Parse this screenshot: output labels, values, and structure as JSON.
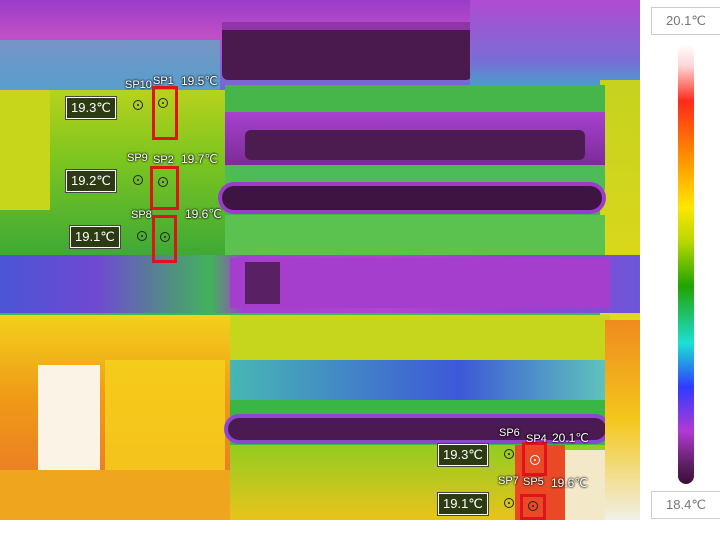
{
  "scale": {
    "max_label": "20.1℃",
    "min_label": "18.4℃"
  },
  "spots": {
    "sp1": {
      "name": "SP1",
      "value": "19.5℃"
    },
    "sp2": {
      "name": "SP2",
      "value": "19.7℃"
    },
    "sp3": {
      "name": "SP3",
      "value": "19.6℃"
    },
    "sp4": {
      "name": "SP4",
      "value": "20.1℃"
    },
    "sp5": {
      "name": "SP5",
      "value": "19.6℃"
    },
    "sp6": {
      "name": "SP6",
      "value": "19.3℃"
    },
    "sp7": {
      "name": "SP7",
      "value": "19.1℃"
    },
    "sp8": {
      "name": "SP8",
      "value": "19.1℃"
    },
    "sp9": {
      "name": "SP9",
      "value": "19.2℃"
    },
    "sp10": {
      "name": "SP10",
      "value": "19.3℃"
    }
  },
  "colors": {
    "highlight_box": "#e0121b",
    "tag_bg": "#2c3b12"
  }
}
